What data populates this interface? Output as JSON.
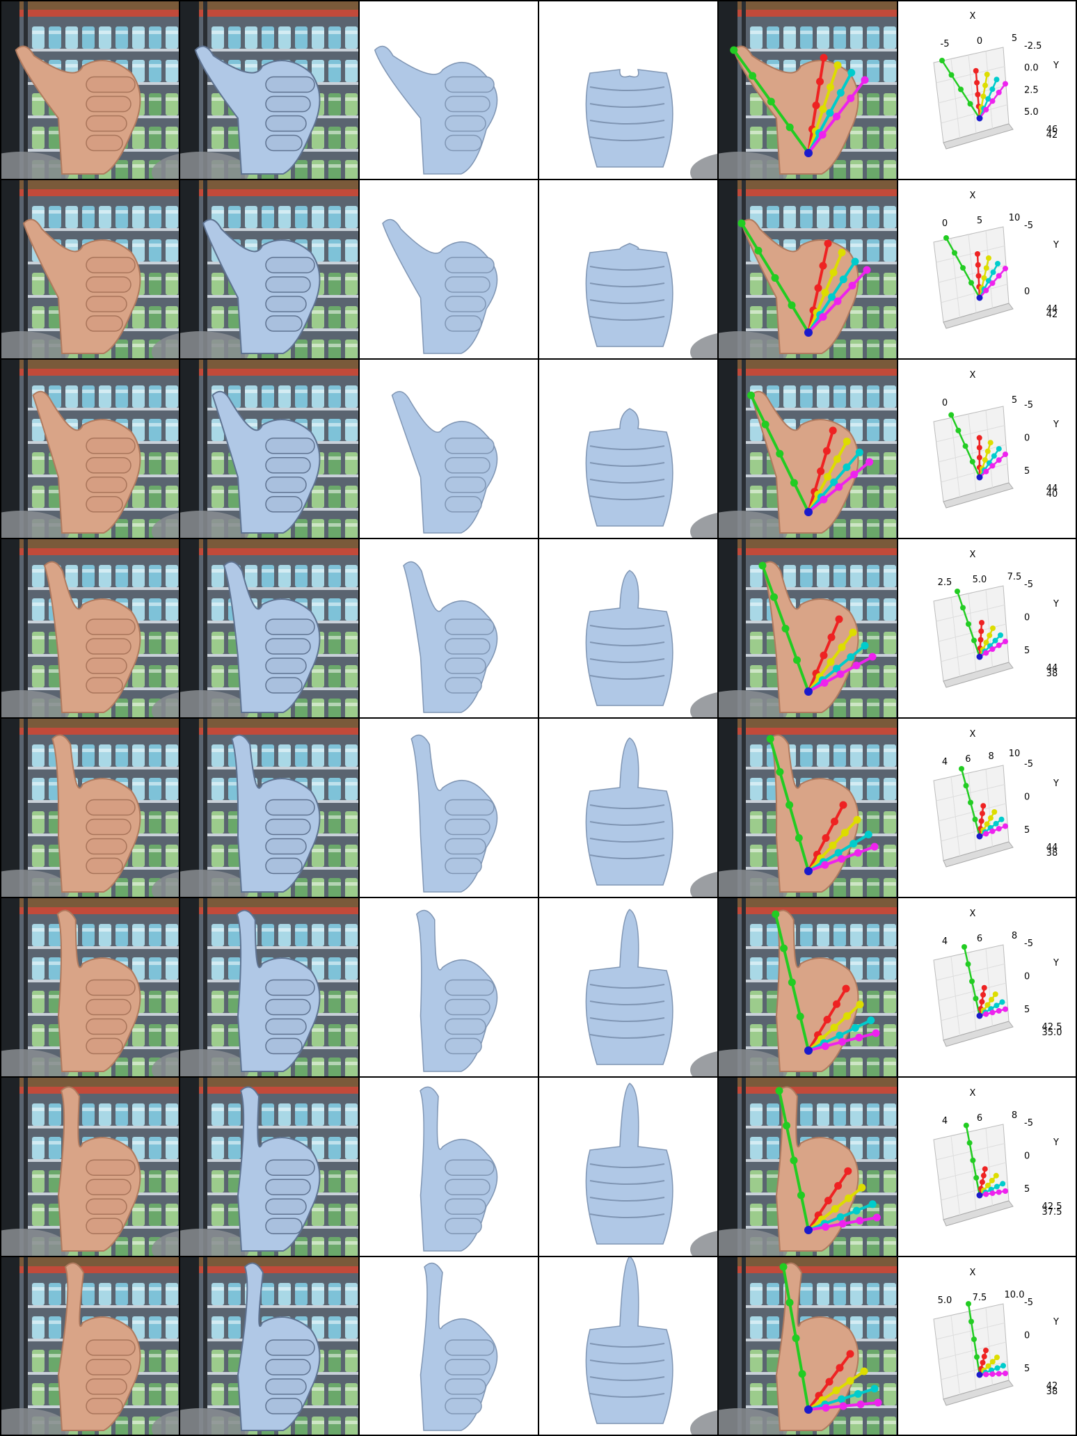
{
  "figure": {
    "rows": [
      {
        "row": 1,
        "x_label": "X",
        "y_label": "Y",
        "x_ticks": [
          "-5",
          "0",
          "5"
        ],
        "y_ticks": [
          "-2.5",
          "0.0",
          "2.5",
          "5.0"
        ],
        "z_ticks": [
          "46",
          "42"
        ]
      },
      {
        "row": 2,
        "x_label": "X",
        "y_label": "Y",
        "x_ticks": [
          "0",
          "5",
          "10"
        ],
        "y_ticks": [
          "-5",
          "0"
        ],
        "z_ticks": [
          "44",
          "42"
        ]
      },
      {
        "row": 3,
        "x_label": "X",
        "y_label": "Y",
        "x_ticks": [
          "0",
          "5"
        ],
        "y_ticks": [
          "-5",
          "0",
          "5"
        ],
        "z_ticks": [
          "44",
          "40"
        ]
      },
      {
        "row": 4,
        "x_label": "X",
        "y_label": "Y",
        "x_ticks": [
          "2.5",
          "5.0",
          "7.5"
        ],
        "y_ticks": [
          "-5",
          "0",
          "5"
        ],
        "z_ticks": [
          "44",
          "38"
        ]
      },
      {
        "row": 5,
        "x_label": "X",
        "y_label": "Y",
        "x_ticks": [
          "4",
          "6",
          "8",
          "10"
        ],
        "y_ticks": [
          "-5",
          "0",
          "5"
        ],
        "z_ticks": [
          "44",
          "38"
        ]
      },
      {
        "row": 6,
        "x_label": "X",
        "y_label": "Y",
        "x_ticks": [
          "4",
          "6",
          "8"
        ],
        "y_ticks": [
          "-5",
          "0",
          "5"
        ],
        "z_ticks": [
          "42.5",
          "35.0"
        ]
      },
      {
        "row": 7,
        "x_label": "X",
        "y_label": "Y",
        "x_ticks": [
          "4",
          "6",
          "8"
        ],
        "y_ticks": [
          "-5",
          "0",
          "5"
        ],
        "z_ticks": [
          "42.5",
          "37.5"
        ]
      },
      {
        "row": 8,
        "x_label": "X",
        "y_label": "Y",
        "x_ticks": [
          "5.0",
          "7.5",
          "10.0"
        ],
        "y_ticks": [
          "-5",
          "0",
          "5"
        ],
        "z_ticks": [
          "42",
          "38"
        ]
      }
    ],
    "skeleton_colors": {
      "thumb": "#22cc22",
      "index": "#ee2222",
      "middle": "#dddd00",
      "ring": "#00cccc",
      "pinky": "#ee22ee",
      "wrist": "#1a1acc"
    },
    "mesh_color": "#b0c8e6"
  }
}
